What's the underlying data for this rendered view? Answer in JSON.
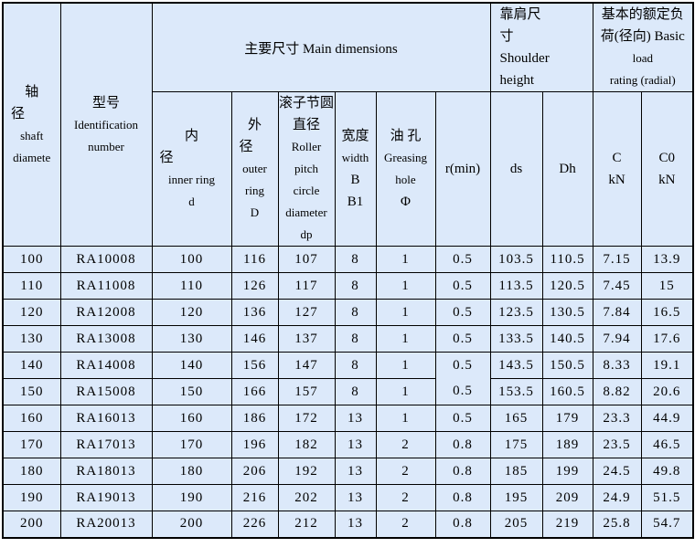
{
  "table": {
    "colors": {
      "cell_background": "#dce9fa",
      "border": "#000000",
      "text": "#000000"
    },
    "header": {
      "shaft_diameter": {
        "lines": [
          "轴",
          "径",
          "shaft",
          "diamete"
        ]
      },
      "identification": {
        "lines": [
          "型号",
          "Identification",
          "number"
        ]
      },
      "main_dimensions": "主要尺寸 Main dimensions",
      "shoulder_height": {
        "lines": [
          "靠肩尺",
          "寸",
          "Shoulder",
          "height"
        ]
      },
      "basic_load": {
        "lines": [
          "基本的额定负",
          "荷(径向) Basic",
          "load",
          "rating (radial)"
        ]
      },
      "inner_ring": {
        "lines": [
          "内",
          "径",
          "inner ring",
          "d"
        ]
      },
      "outer_ring": {
        "lines": [
          "外",
          "径",
          "outer",
          "ring",
          "D"
        ]
      },
      "roller_pitch": {
        "lines": [
          "滚子节圆",
          "直径",
          "Roller",
          "pitch",
          "circle",
          "diameter",
          "dp"
        ]
      },
      "width": {
        "lines": [
          "宽度",
          "width",
          "B",
          "B1"
        ]
      },
      "greasing_hole": {
        "lines": [
          "油 孔",
          "Greasing",
          "hole",
          "Φ"
        ]
      },
      "r_min": "r(min)",
      "ds": "ds",
      "dh": "Dh",
      "c_kn": {
        "lines": [
          "C",
          "kN"
        ]
      },
      "c0_kn": {
        "lines": [
          "C0",
          "kN"
        ]
      }
    },
    "column_keys": [
      "shaft-diameter",
      "identification-number",
      "inner-ring-d",
      "outer-ring-D",
      "roller-pitch-dp",
      "width-B",
      "greasing-hole",
      "r-min",
      "ds",
      "Dh",
      "C-kN",
      "C0-kN"
    ],
    "rows": [
      [
        "100",
        "RA10008",
        "100",
        "116",
        "107",
        "8",
        "1",
        "0.5",
        "103.5",
        "110.5",
        "7.15",
        "13.9"
      ],
      [
        "110",
        "RA11008",
        "110",
        "126",
        "117",
        "8",
        "1",
        "0.5",
        "113.5",
        "120.5",
        "7.45",
        "15"
      ],
      [
        "120",
        "RA12008",
        "120",
        "136",
        "127",
        "8",
        "1",
        "0.5",
        "123.5",
        "130.5",
        "7.84",
        "16.5"
      ],
      [
        "130",
        "RA13008",
        "130",
        "146",
        "137",
        "8",
        "1",
        "0.5",
        "133.5",
        "140.5",
        "7.94",
        "17.6"
      ],
      [
        "140",
        "RA14008",
        "140",
        "156",
        "147",
        "8",
        "1",
        "0.5",
        "143.5",
        "150.5",
        "8.33",
        "19.1"
      ],
      [
        "150",
        "RA15008",
        "150",
        "166",
        "157",
        "8",
        "1",
        "0.5",
        "153.5",
        "160.5",
        "8.82",
        "20.6"
      ],
      [
        "160",
        "RA16013",
        "160",
        "186",
        "172",
        "13",
        "1",
        "0.5",
        "165",
        "179",
        "23.3",
        "44.9"
      ],
      [
        "170",
        "RA17013",
        "170",
        "196",
        "182",
        "13",
        "2",
        "0.8",
        "175",
        "189",
        "23.5",
        "46.5"
      ],
      [
        "180",
        "RA18013",
        "180",
        "206",
        "192",
        "13",
        "2",
        "0.8",
        "185",
        "199",
        "24.5",
        "49.8"
      ],
      [
        "190",
        "RA19013",
        "190",
        "216",
        "202",
        "13",
        "2",
        "0.8",
        "195",
        "209",
        "24.9",
        "51.5"
      ],
      [
        "200",
        "RA20013",
        "200",
        "226",
        "212",
        "13",
        "2",
        "0.8",
        "205",
        "219",
        "25.8",
        "54.7"
      ]
    ],
    "merged_border_note": "r(min) column: border between 140 and 150 rows is hidden"
  }
}
